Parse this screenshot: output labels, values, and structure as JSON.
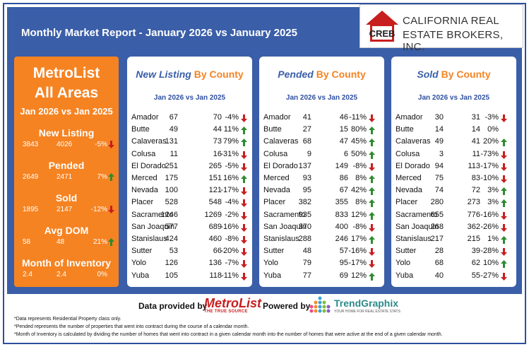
{
  "header": {
    "title": "Monthly Market Report - January 2026 vs January 2025",
    "logo_abbr": "CREB",
    "logo_line1": "CALIFORNIA REAL",
    "logo_line2": "ESTATE BROKERS, INC."
  },
  "colors": {
    "accent_blue": "#3a5ea8",
    "accent_orange": "#f58322",
    "up": "#2e8b2e",
    "down": "#c81e1e"
  },
  "summary": {
    "title_line1": "MetroList",
    "title_line2": "All Areas",
    "period": "Jan 2026 vs Jan 2025",
    "metrics": [
      {
        "label": "New Listing",
        "current": "3843",
        "prior": "4026",
        "change": "-5%",
        "trend": "down"
      },
      {
        "label": "Pended",
        "current": "2649",
        "prior": "2471",
        "change": "7%",
        "trend": "up"
      },
      {
        "label": "Sold",
        "current": "1895",
        "prior": "2147",
        "change": "-12%",
        "trend": "down"
      },
      {
        "label": "Avg DOM",
        "current": "58",
        "prior": "48",
        "change": "21%",
        "trend": "up"
      },
      {
        "label": "Month of Inventory",
        "current": "2.4",
        "prior": "2.4",
        "change": "0%",
        "trend": "none"
      }
    ]
  },
  "panels": [
    {
      "title_a": "New Listing",
      "title_b": "By County",
      "subtitle": "Jan 2026 vs Jan 2025",
      "rows": [
        {
          "county": "Amador",
          "a": "67",
          "b": "70",
          "pct": "-4%",
          "trend": "down"
        },
        {
          "county": "Butte",
          "a": "49",
          "b": "44",
          "pct": "11%",
          "trend": "up"
        },
        {
          "county": "Calaveras",
          "a": "131",
          "b": "73",
          "pct": "79%",
          "trend": "up"
        },
        {
          "county": "Colusa",
          "a": "11",
          "b": "16",
          "pct": "-31%",
          "trend": "down"
        },
        {
          "county": "El Dorado",
          "a": "251",
          "b": "265",
          "pct": "-5%",
          "trend": "down"
        },
        {
          "county": "Merced",
          "a": "175",
          "b": "151",
          "pct": "16%",
          "trend": "up"
        },
        {
          "county": "Nevada",
          "a": "100",
          "b": "121",
          "pct": "-17%",
          "trend": "down"
        },
        {
          "county": "Placer",
          "a": "528",
          "b": "548",
          "pct": "-4%",
          "trend": "down"
        },
        {
          "county": "Sacramento",
          "a": "1246",
          "b": "1269",
          "pct": "-2%",
          "trend": "down"
        },
        {
          "county": "San Joaquin",
          "a": "577",
          "b": "689",
          "pct": "-16%",
          "trend": "down"
        },
        {
          "county": "Stanislaus",
          "a": "424",
          "b": "460",
          "pct": "-8%",
          "trend": "down"
        },
        {
          "county": "Sutter",
          "a": "53",
          "b": "66",
          "pct": "-20%",
          "trend": "down"
        },
        {
          "county": "Yolo",
          "a": "126",
          "b": "136",
          "pct": "-7%",
          "trend": "down"
        },
        {
          "county": "Yuba",
          "a": "105",
          "b": "118",
          "pct": "-11%",
          "trend": "down"
        }
      ]
    },
    {
      "title_a": "Pended",
      "title_b": "By County",
      "subtitle": "Jan 2026 vs Jan 2025",
      "rows": [
        {
          "county": "Amador",
          "a": "41",
          "b": "46",
          "pct": "-11%",
          "trend": "down"
        },
        {
          "county": "Butte",
          "a": "27",
          "b": "15",
          "pct": "80%",
          "trend": "up"
        },
        {
          "county": "Calaveras",
          "a": "68",
          "b": "47",
          "pct": "45%",
          "trend": "up"
        },
        {
          "county": "Colusa",
          "a": "9",
          "b": "6",
          "pct": "50%",
          "trend": "up"
        },
        {
          "county": "El Dorado",
          "a": "137",
          "b": "149",
          "pct": "-8%",
          "trend": "down"
        },
        {
          "county": "Merced",
          "a": "93",
          "b": "86",
          "pct": "8%",
          "trend": "up"
        },
        {
          "county": "Nevada",
          "a": "95",
          "b": "67",
          "pct": "42%",
          "trend": "up"
        },
        {
          "county": "Placer",
          "a": "382",
          "b": "355",
          "pct": "8%",
          "trend": "up"
        },
        {
          "county": "Sacramento",
          "a": "935",
          "b": "833",
          "pct": "12%",
          "trend": "up"
        },
        {
          "county": "San Joaquin",
          "a": "370",
          "b": "400",
          "pct": "-8%",
          "trend": "down"
        },
        {
          "county": "Stanislaus",
          "a": "288",
          "b": "246",
          "pct": "17%",
          "trend": "up"
        },
        {
          "county": "Sutter",
          "a": "48",
          "b": "57",
          "pct": "-16%",
          "trend": "down"
        },
        {
          "county": "Yolo",
          "a": "79",
          "b": "95",
          "pct": "-17%",
          "trend": "down"
        },
        {
          "county": "Yuba",
          "a": "77",
          "b": "69",
          "pct": "12%",
          "trend": "up"
        }
      ]
    },
    {
      "title_a": "Sold",
      "title_b": "By County",
      "subtitle": "Jan 2026 vs Jan 2025",
      "rows": [
        {
          "county": "Amador",
          "a": "30",
          "b": "31",
          "pct": "-3%",
          "trend": "down"
        },
        {
          "county": "Butte",
          "a": "14",
          "b": "14",
          "pct": "0%",
          "trend": "none"
        },
        {
          "county": "Calaveras",
          "a": "49",
          "b": "41",
          "pct": "20%",
          "trend": "up"
        },
        {
          "county": "Colusa",
          "a": "3",
          "b": "11",
          "pct": "-73%",
          "trend": "down"
        },
        {
          "county": "El Dorado",
          "a": "94",
          "b": "113",
          "pct": "-17%",
          "trend": "down"
        },
        {
          "county": "Merced",
          "a": "75",
          "b": "83",
          "pct": "-10%",
          "trend": "down"
        },
        {
          "county": "Nevada",
          "a": "74",
          "b": "72",
          "pct": "3%",
          "trend": "up"
        },
        {
          "county": "Placer",
          "a": "280",
          "b": "273",
          "pct": "3%",
          "trend": "up"
        },
        {
          "county": "Sacramento",
          "a": "655",
          "b": "776",
          "pct": "-16%",
          "trend": "down"
        },
        {
          "county": "San Joaquin",
          "a": "268",
          "b": "362",
          "pct": "-26%",
          "trend": "down"
        },
        {
          "county": "Stanislaus",
          "a": "217",
          "b": "215",
          "pct": "1%",
          "trend": "up"
        },
        {
          "county": "Sutter",
          "a": "28",
          "b": "39",
          "pct": "-28%",
          "trend": "down"
        },
        {
          "county": "Yolo",
          "a": "68",
          "b": "62",
          "pct": "10%",
          "trend": "up"
        },
        {
          "county": "Yuba",
          "a": "40",
          "b": "55",
          "pct": "-27%",
          "trend": "down"
        }
      ]
    }
  ],
  "footer": {
    "data_provided_by": "Data provided by",
    "metrolist_logo": "MetroList",
    "metrolist_tagline": "THE TRUE SOURCE",
    "powered_by": "Powered by",
    "trendgraphix_logo": "TrendGraphix",
    "trendgraphix_tagline": "YOUR HOME FOR REAL ESTATE STATS",
    "notes": [
      "*Data represents Residential Property class only.",
      "*Pended represents the number of properties that went into contract during the course of a calendar month.",
      "*Month of Inventory is calculated by dividing the number of homes that went into contract in a given calendar month into the number of homes that were active at the end of a given calendar month."
    ]
  }
}
